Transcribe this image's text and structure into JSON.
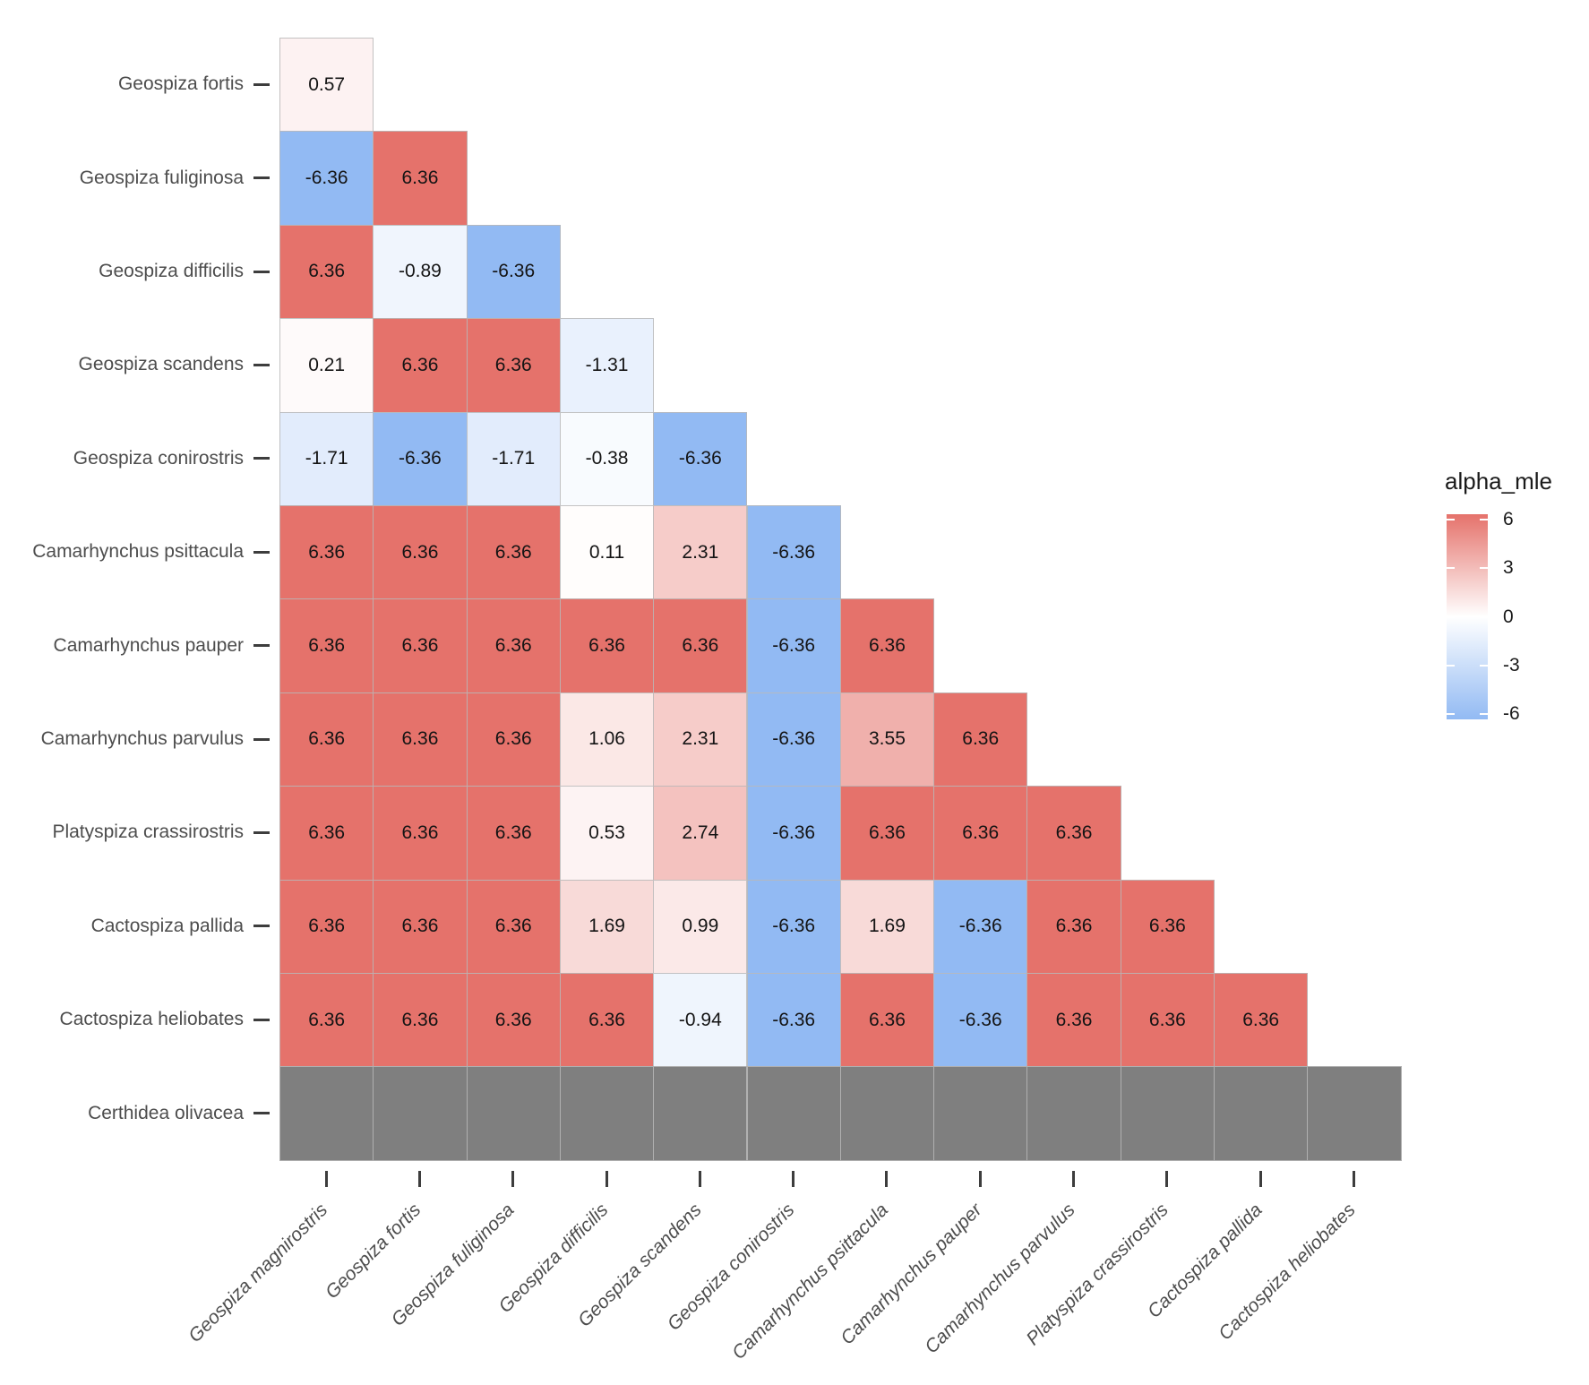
{
  "chart_data": {
    "type": "heatmap",
    "title": "",
    "legend": {
      "title": "alpha_mle",
      "ticks": [
        6,
        3,
        0,
        -3,
        -6
      ],
      "range": [
        -6.36,
        6.36
      ],
      "position": "right"
    },
    "x_categories": [
      "Geospiza magnirostris",
      "Geospiza fortis",
      "Geospiza fuliginosa",
      "Geospiza difficilis",
      "Geospiza scandens",
      "Geospiza conirostris",
      "Camarhynchus psittacula",
      "Camarhynchus pauper",
      "Camarhynchus parvulus",
      "Platyspiza crassirostris",
      "Cactospiza pallida",
      "Cactospiza heliobates"
    ],
    "y_categories": [
      "Geospiza fortis",
      "Geospiza fuliginosa",
      "Geospiza difficilis",
      "Geospiza scandens",
      "Geospiza conirostris",
      "Camarhynchus psittacula",
      "Camarhynchus pauper",
      "Camarhynchus parvulus",
      "Platyspiza crassirostris",
      "Cactospiza pallida",
      "Cactospiza heliobates",
      "Certhidea olivacea"
    ],
    "values": [
      [
        0.57
      ],
      [
        -6.36,
        6.36
      ],
      [
        6.36,
        -0.89,
        -6.36
      ],
      [
        0.21,
        6.36,
        6.36,
        -1.31
      ],
      [
        -1.71,
        -6.36,
        -1.71,
        -0.38,
        -6.36
      ],
      [
        6.36,
        6.36,
        6.36,
        0.11,
        2.31,
        -6.36
      ],
      [
        6.36,
        6.36,
        6.36,
        6.36,
        6.36,
        -6.36,
        6.36
      ],
      [
        6.36,
        6.36,
        6.36,
        1.06,
        2.31,
        -6.36,
        3.55,
        6.36
      ],
      [
        6.36,
        6.36,
        6.36,
        0.53,
        2.74,
        -6.36,
        6.36,
        6.36,
        6.36
      ],
      [
        6.36,
        6.36,
        6.36,
        1.69,
        0.99,
        -6.36,
        1.69,
        -6.36,
        6.36,
        6.36
      ],
      [
        6.36,
        6.36,
        6.36,
        6.36,
        -0.94,
        -6.36,
        6.36,
        -6.36,
        6.36,
        6.36,
        6.36
      ],
      [
        null,
        null,
        null,
        null,
        null,
        null,
        null,
        null,
        null,
        null,
        null,
        null
      ]
    ],
    "colors": {
      "high": "#E5726B",
      "mid": "#FFFFFF",
      "low": "#92BAF3",
      "na": "#7F7F7F",
      "cell_border": "#B9B9B9",
      "axis_text": "#4D4D4D",
      "value_text": "#141414",
      "tick_mark": "#3D3D3D"
    },
    "grid": false,
    "value_decimals": 2
  }
}
